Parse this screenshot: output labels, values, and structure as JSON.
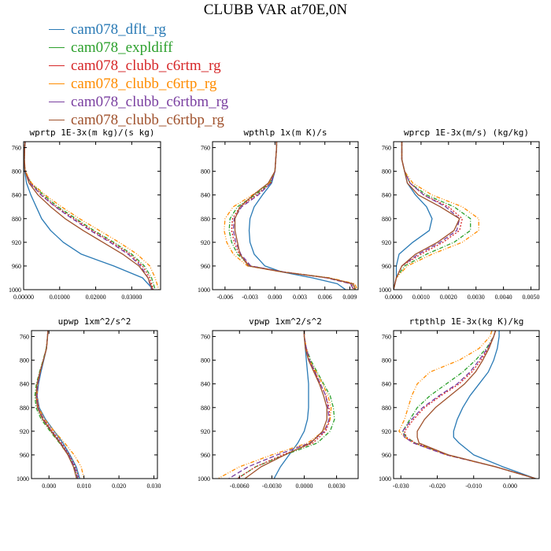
{
  "figure_title": "CLUBB VAR at70E,0N",
  "colors": {
    "cam078_dflt_rg": "#2a7ab5",
    "cam078_expldiff": "#2ca02c",
    "cam078_clubb_c6rtm_rg": "#d62728",
    "cam078_clubb_c6rtp_rg": "#ff8c00",
    "cam078_clubb_c6rtbm_rg": "#7a3fa0",
    "cam078_clubb_c6rtbp_rg": "#a0522d"
  },
  "legend": [
    {
      "name": "cam078_dflt_rg",
      "color": "#2a7ab5"
    },
    {
      "name": "cam078_expldiff",
      "color": "#2ca02c"
    },
    {
      "name": "cam078_clubb_c6rtm_rg",
      "color": "#d62728"
    },
    {
      "name": "cam078_clubb_c6rtp_rg",
      "color": "#ff8c00"
    },
    {
      "name": "cam078_clubb_c6rtbm_rg",
      "color": "#7a3fa0"
    },
    {
      "name": "cam078_clubb_c6rtbp_rg",
      "color": "#a0522d"
    }
  ],
  "chart_data": [
    {
      "type": "line",
      "title": "wprtp  1E-3x(m kg)/(s kg)",
      "xlim": [
        0,
        0.038
      ],
      "ylim": [
        750,
        1000
      ],
      "xticks": [
        0,
        0.01,
        0.02,
        0.03
      ],
      "xticklabels": [
        "0.00000",
        "0.01000",
        "0.02000",
        "0.03000"
      ],
      "yticks": [
        760,
        800,
        840,
        880,
        920,
        960,
        1000
      ],
      "y": [
        750,
        760,
        780,
        800,
        820,
        840,
        860,
        880,
        900,
        920,
        940,
        960,
        980,
        1000
      ],
      "series": [
        {
          "name": "cam078_dflt_rg",
          "values": [
            0.0005,
            0.0003,
            0.0002,
            0.0003,
            0.0008,
            0.002,
            0.0035,
            0.005,
            0.0075,
            0.011,
            0.016,
            0.025,
            0.033,
            0.036
          ]
        },
        {
          "name": "cam078_expldiff",
          "values": [
            0.0004,
            0.0003,
            0.0002,
            0.0004,
            0.002,
            0.0055,
            0.0095,
            0.0145,
            0.0195,
            0.025,
            0.03,
            0.0335,
            0.0355,
            0.0365
          ]
        },
        {
          "name": "cam078_clubb_c6rtm_rg",
          "values": [
            0.0004,
            0.0003,
            0.0002,
            0.0004,
            0.002,
            0.005,
            0.009,
            0.014,
            0.019,
            0.0245,
            0.0295,
            0.033,
            0.035,
            0.036
          ]
        },
        {
          "name": "cam078_clubb_c6rtp_rg",
          "values": [
            0.0004,
            0.0003,
            0.0002,
            0.0005,
            0.0022,
            0.006,
            0.0105,
            0.0155,
            0.021,
            0.0265,
            0.0315,
            0.035,
            0.0365,
            0.0375
          ]
        },
        {
          "name": "cam078_clubb_c6rtbm_rg",
          "values": [
            0.0004,
            0.0003,
            0.0002,
            0.0004,
            0.0018,
            0.0048,
            0.0088,
            0.0135,
            0.0185,
            0.024,
            0.029,
            0.0325,
            0.0345,
            0.0355
          ]
        },
        {
          "name": "cam078_clubb_c6rtbp_rg",
          "values": [
            0.0004,
            0.0003,
            0.0002,
            0.0004,
            0.0015,
            0.004,
            0.0075,
            0.0115,
            0.0165,
            0.022,
            0.0275,
            0.032,
            0.0345,
            0.0358
          ]
        }
      ]
    },
    {
      "type": "line",
      "title": "wpthlp  1x(m K)/s",
      "xlim": [
        -0.0075,
        0.01
      ],
      "ylim": [
        750,
        1000
      ],
      "xticks": [
        -0.006,
        -0.003,
        0,
        0.003,
        0.006,
        0.009
      ],
      "xticklabels": [
        "-0.006",
        "-0.003",
        "0.000",
        "0.003",
        "0.006",
        "0.009"
      ],
      "yticks": [
        760,
        800,
        840,
        880,
        920,
        960,
        1000
      ],
      "y": [
        750,
        760,
        780,
        800,
        820,
        840,
        860,
        880,
        900,
        920,
        940,
        960,
        970,
        980,
        990,
        1000
      ],
      "series": [
        {
          "name": "cam078_dflt_rg",
          "values": [
            0.0002,
            0.0002,
            0.0001,
            0,
            -0.0004,
            -0.0015,
            -0.0025,
            -0.003,
            -0.0031,
            -0.003,
            -0.0025,
            -0.0012,
            0.0008,
            0.0045,
            0.0075,
            0.0085
          ]
        },
        {
          "name": "cam078_expldiff",
          "values": [
            0.0002,
            0.0002,
            0.0001,
            0,
            -0.0006,
            -0.0024,
            -0.0045,
            -0.0054,
            -0.0055,
            -0.0052,
            -0.0045,
            -0.003,
            0.001,
            0.0065,
            0.0093,
            0.0096
          ]
        },
        {
          "name": "cam078_clubb_c6rtm_rg",
          "values": [
            0.0002,
            0.0002,
            0.0001,
            0,
            -0.0005,
            -0.0022,
            -0.0042,
            -0.0051,
            -0.0052,
            -0.0049,
            -0.0043,
            -0.003,
            0.001,
            0.0063,
            0.0092,
            0.0095
          ]
        },
        {
          "name": "cam078_clubb_c6rtp_rg",
          "values": [
            0.0002,
            0.0002,
            0.0001,
            0,
            -0.0007,
            -0.0027,
            -0.005,
            -0.006,
            -0.0061,
            -0.0058,
            -0.005,
            -0.0033,
            0.0008,
            0.0066,
            0.0096,
            0.0099
          ]
        },
        {
          "name": "cam078_clubb_c6rtbm_rg",
          "values": [
            0.0002,
            0.0002,
            0.0001,
            0,
            -0.0005,
            -0.002,
            -0.004,
            -0.0049,
            -0.005,
            -0.0047,
            -0.0041,
            -0.0029,
            0.001,
            0.0062,
            0.0091,
            0.0094
          ]
        },
        {
          "name": "cam078_clubb_c6rtbp_rg",
          "values": [
            0.0002,
            0.0002,
            0.0001,
            0,
            -0.0008,
            -0.0026,
            -0.0042,
            -0.0048,
            -0.0048,
            -0.0045,
            -0.0042,
            -0.0032,
            0.0008,
            0.0064,
            0.0094,
            0.0097
          ]
        }
      ]
    },
    {
      "type": "line",
      "title": "wprcp  1E-3x(m/s) (kg/kg)",
      "xlim": [
        0,
        0.0053
      ],
      "ylim": [
        750,
        1000
      ],
      "xticks": [
        0,
        0.001,
        0.002,
        0.003,
        0.004,
        0.005
      ],
      "xticklabels": [
        "0.0000",
        "0.0010",
        "0.0020",
        "0.0030",
        "0.0040",
        "0.0050"
      ],
      "yticks": [
        760,
        800,
        840,
        880,
        920,
        960,
        1000
      ],
      "y": [
        750,
        760,
        780,
        800,
        820,
        840,
        860,
        880,
        900,
        920,
        940,
        960,
        980,
        1000
      ],
      "series": [
        {
          "name": "cam078_dflt_rg",
          "values": [
            0.0003,
            0.0003,
            0.0003,
            0.0004,
            0.0005,
            0.0008,
            0.0012,
            0.0014,
            0.0013,
            0.0007,
            0.0002,
            0.0001,
            0.0001,
            0
          ]
        },
        {
          "name": "cam078_expldiff",
          "values": [
            0.0003,
            0.0003,
            0.0003,
            0.0004,
            0.0006,
            0.0012,
            0.0022,
            0.0028,
            0.0028,
            0.0022,
            0.0012,
            0.0004,
            0.0001,
            0
          ]
        },
        {
          "name": "cam078_clubb_c6rtm_rg",
          "values": [
            0.0003,
            0.0003,
            0.0003,
            0.0004,
            0.0006,
            0.0011,
            0.002,
            0.0025,
            0.0024,
            0.0018,
            0.001,
            0.0003,
            0.0001,
            0
          ]
        },
        {
          "name": "cam078_clubb_c6rtp_rg",
          "values": [
            0.0003,
            0.0003,
            0.0003,
            0.0004,
            0.0007,
            0.0014,
            0.0025,
            0.0031,
            0.0031,
            0.0025,
            0.0014,
            0.0005,
            0.0001,
            0
          ]
        },
        {
          "name": "cam078_clubb_c6rtbm_rg",
          "values": [
            0.0003,
            0.0003,
            0.0003,
            0.0004,
            0.0006,
            0.0011,
            0.0019,
            0.0024,
            0.0023,
            0.0017,
            0.0009,
            0.0003,
            0.0001,
            0
          ]
        },
        {
          "name": "cam078_clubb_c6rtbp_rg",
          "values": [
            0.0003,
            0.0003,
            0.0003,
            0.0004,
            0.0005,
            0.0009,
            0.0017,
            0.0024,
            0.0022,
            0.0016,
            0.0008,
            0.0003,
            0.0001,
            0
          ]
        }
      ]
    },
    {
      "type": "line",
      "title": "upwp  1xm^2/s^2",
      "xlim": [
        -0.005,
        0.031
      ],
      "ylim": [
        750,
        1000
      ],
      "xticks": [
        0,
        0.01,
        0.02,
        0.03
      ],
      "xticklabels": [
        "0.000",
        "0.010",
        "0.020",
        "0.030"
      ],
      "yticks": [
        760,
        800,
        840,
        880,
        920,
        960,
        1000
      ],
      "y": [
        750,
        760,
        780,
        800,
        820,
        840,
        860,
        880,
        900,
        920,
        940,
        960,
        980,
        1000
      ],
      "series": [
        {
          "name": "cam078_dflt_rg",
          "values": [
            -0.0003,
            -0.0004,
            -0.0007,
            -0.0015,
            -0.0023,
            -0.003,
            -0.0034,
            -0.0028,
            -0.001,
            0.0015,
            0.004,
            0.006,
            0.0078,
            0.0088
          ]
        },
        {
          "name": "cam078_expldiff",
          "values": [
            -0.0003,
            -0.0004,
            -0.0008,
            -0.0017,
            -0.0027,
            -0.0036,
            -0.004,
            -0.0037,
            -0.0022,
            0.0003,
            0.003,
            0.0055,
            0.0072,
            0.0082
          ]
        },
        {
          "name": "cam078_clubb_c6rtm_rg",
          "values": [
            -0.0003,
            -0.0004,
            -0.0007,
            -0.0016,
            -0.0025,
            -0.0032,
            -0.0034,
            -0.003,
            -0.0015,
            0.001,
            0.0036,
            0.0058,
            0.0075,
            0.0085
          ]
        },
        {
          "name": "cam078_clubb_c6rtp_rg",
          "values": [
            -0.0003,
            -0.0004,
            -0.0007,
            -0.0016,
            -0.0025,
            -0.0032,
            -0.0035,
            -0.003,
            -0.0012,
            0.0015,
            0.0045,
            0.0072,
            0.0092,
            0.01
          ]
        },
        {
          "name": "cam078_clubb_c6rtbm_rg",
          "values": [
            -0.0003,
            -0.0004,
            -0.0007,
            -0.0016,
            -0.0025,
            -0.0032,
            -0.0035,
            -0.0031,
            -0.0016,
            0.0008,
            0.0034,
            0.0056,
            0.0073,
            0.0083
          ]
        },
        {
          "name": "cam078_clubb_c6rtbp_rg",
          "values": [
            -0.0003,
            -0.0004,
            -0.0007,
            -0.0016,
            -0.0026,
            -0.0034,
            -0.0037,
            -0.0033,
            -0.0018,
            0.0006,
            0.0032,
            0.0054,
            0.007,
            0.0079
          ]
        }
      ]
    },
    {
      "type": "line",
      "title": "vpwp  1xm^2/s^2",
      "xlim": [
        -0.0085,
        0.005
      ],
      "ylim": [
        750,
        1000
      ],
      "xticks": [
        -0.006,
        -0.003,
        0,
        0.003
      ],
      "xticklabels": [
        "-0.0060",
        "-0.0030",
        "0.0000",
        "0.0030"
      ],
      "yticks": [
        760,
        800,
        840,
        880,
        920,
        960,
        1000
      ],
      "y": [
        750,
        760,
        780,
        800,
        820,
        840,
        860,
        880,
        900,
        920,
        940,
        960,
        980,
        1000
      ],
      "series": [
        {
          "name": "cam078_dflt_rg",
          "values": [
            0,
            0,
            0.0001,
            0.0002,
            0.0003,
            0.0004,
            0.0004,
            0.0004,
            0.0003,
            0,
            -0.0006,
            -0.0014,
            -0.0022,
            -0.0028
          ]
        },
        {
          "name": "cam078_expldiff",
          "values": [
            0,
            0,
            0.0002,
            0.0006,
            0.0012,
            0.0018,
            0.0024,
            0.0027,
            0.0028,
            0.0024,
            0.0012,
            -0.0018,
            -0.0045,
            -0.0062
          ]
        },
        {
          "name": "cam078_clubb_c6rtm_rg",
          "values": [
            0,
            0,
            0.0002,
            0.0005,
            0.001,
            0.0015,
            0.002,
            0.0023,
            0.0024,
            0.002,
            0.0008,
            -0.002,
            -0.0045,
            -0.0062
          ]
        },
        {
          "name": "cam078_clubb_c6rtp_rg",
          "values": [
            0,
            0,
            0.0002,
            0.0005,
            0.0011,
            0.0017,
            0.0022,
            0.0025,
            0.0024,
            0.0018,
            0.0003,
            -0.003,
            -0.006,
            -0.008
          ]
        },
        {
          "name": "cam078_clubb_c6rtbm_rg",
          "values": [
            0,
            0,
            0.0002,
            0.0005,
            0.001,
            0.0015,
            0.002,
            0.0022,
            0.0023,
            0.0019,
            0.0005,
            -0.0025,
            -0.0052,
            -0.007
          ]
        },
        {
          "name": "cam078_clubb_c6rtbp_rg",
          "values": [
            0,
            0,
            0.0001,
            0.0004,
            0.0009,
            0.0014,
            0.0018,
            0.0021,
            0.0021,
            0.0017,
            0.0006,
            -0.0018,
            -0.004,
            -0.0055
          ]
        }
      ]
    },
    {
      "type": "line",
      "title": "rtpthlp  1E-3x(kg K)/kg",
      "xlim": [
        -0.032,
        0.008
      ],
      "ylim": [
        750,
        1000
      ],
      "xticks": [
        -0.03,
        -0.02,
        -0.01,
        0
      ],
      "xticklabels": [
        "-0.030",
        "-0.020",
        "-0.010",
        "0.000"
      ],
      "yticks": [
        760,
        800,
        840,
        880,
        920,
        960,
        1000
      ],
      "y": [
        750,
        760,
        780,
        800,
        820,
        840,
        860,
        880,
        900,
        920,
        930,
        940,
        960,
        980,
        1000
      ],
      "series": [
        {
          "name": "cam078_dflt_rg",
          "values": [
            -0.003,
            -0.003,
            -0.0035,
            -0.0045,
            -0.006,
            -0.0085,
            -0.011,
            -0.013,
            -0.0145,
            -0.0155,
            -0.0155,
            -0.014,
            -0.01,
            -0.002,
            0.007
          ]
        },
        {
          "name": "cam078_expldiff",
          "values": [
            -0.004,
            -0.0045,
            -0.0065,
            -0.0095,
            -0.013,
            -0.0175,
            -0.022,
            -0.0255,
            -0.0275,
            -0.0295,
            -0.0285,
            -0.026,
            -0.017,
            -0.004,
            0.007
          ]
        },
        {
          "name": "cam078_clubb_c6rtm_rg",
          "values": [
            -0.004,
            -0.0045,
            -0.006,
            -0.008,
            -0.0105,
            -0.014,
            -0.019,
            -0.0235,
            -0.0265,
            -0.029,
            -0.0285,
            -0.026,
            -0.017,
            -0.004,
            0.007
          ]
        },
        {
          "name": "cam078_clubb_c6rtp_rg",
          "values": [
            -0.005,
            -0.0055,
            -0.0085,
            -0.014,
            -0.022,
            -0.0255,
            -0.027,
            -0.028,
            -0.029,
            -0.0305,
            -0.029,
            -0.0265,
            -0.0175,
            -0.004,
            0.007
          ]
        },
        {
          "name": "cam078_clubb_c6rtbm_rg",
          "values": [
            -0.004,
            -0.0045,
            -0.0062,
            -0.0085,
            -0.011,
            -0.0145,
            -0.0195,
            -0.024,
            -0.027,
            -0.0295,
            -0.029,
            -0.0265,
            -0.0175,
            -0.004,
            0.007
          ]
        },
        {
          "name": "cam078_clubb_c6rtbp_rg",
          "values": [
            -0.004,
            -0.0045,
            -0.0058,
            -0.0075,
            -0.0095,
            -0.0125,
            -0.0165,
            -0.0205,
            -0.0235,
            -0.0255,
            -0.0255,
            -0.025,
            -0.017,
            -0.004,
            0.007
          ]
        }
      ]
    }
  ]
}
